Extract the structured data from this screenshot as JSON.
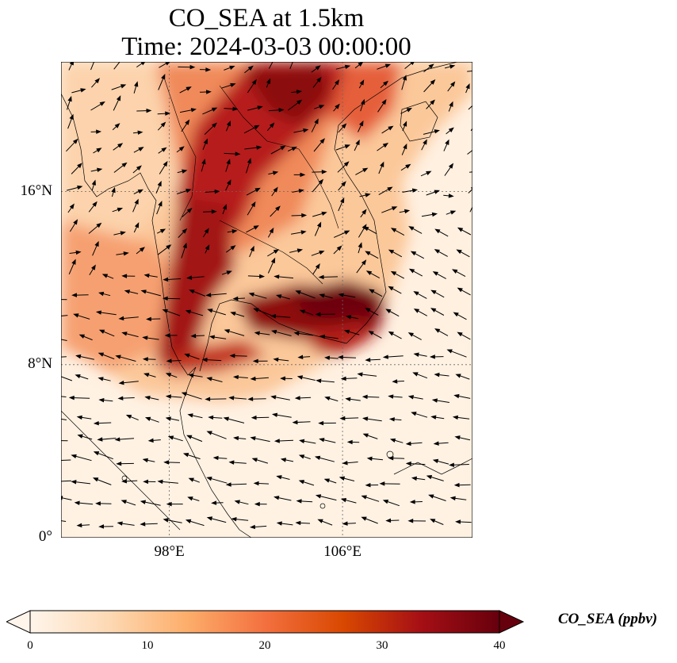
{
  "title": {
    "line1": "CO_SEA at 1.5km",
    "line2": "Time: 2024-03-03 00:00:00"
  },
  "map": {
    "extent": {
      "lon_min": 93,
      "lon_max": 112,
      "lat_min": 0,
      "lat_max": 22
    },
    "lat_ticks": [
      {
        "value": 16,
        "label": "16°N"
      },
      {
        "value": 8,
        "label": "8°N"
      },
      {
        "value": 0,
        "label": "0°"
      }
    ],
    "lon_ticks": [
      {
        "value": 98,
        "label": "98°E"
      },
      {
        "value": 106,
        "label": "106°E"
      }
    ],
    "gridlines": "dotted",
    "field": "CO concentration with wind vectors"
  },
  "colorbar": {
    "label": "CO_SEA (ppbv)",
    "min": 0,
    "max": 40,
    "ticks": [
      {
        "value": 0,
        "label": "0"
      },
      {
        "value": 10,
        "label": "10"
      },
      {
        "value": 20,
        "label": "20"
      },
      {
        "value": 30,
        "label": "30"
      },
      {
        "value": 40,
        "label": "40"
      }
    ],
    "colormap": [
      "#fff5eb",
      "#fdd9b4",
      "#fdae6b",
      "#f3703f",
      "#d94801",
      "#a50f15",
      "#67000d"
    ],
    "extend": "both"
  }
}
